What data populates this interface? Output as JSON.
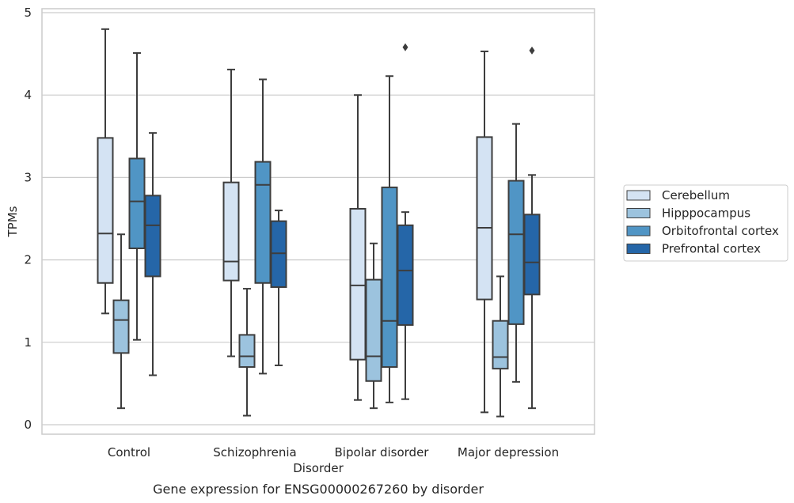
{
  "chart_data": {
    "type": "box",
    "xlabel": "Disorder",
    "ylabel": "TPMs",
    "caption": "Gene expression for ENSG00000267260 by disorder",
    "ylim": [
      -0.12,
      5.05
    ],
    "yticks": [
      0,
      1,
      2,
      3,
      4,
      5
    ],
    "grid": true,
    "legend_position": "right",
    "categories": [
      "Control",
      "Schizophrenia",
      "Bipolar disorder",
      "Major depression"
    ],
    "series": [
      {
        "name": "Cerebellum",
        "color": "#d4e3f3",
        "boxes": [
          {
            "whislo": 1.35,
            "q1": 1.72,
            "med": 2.32,
            "q3": 3.48,
            "whishi": 4.8,
            "fliers": []
          },
          {
            "whislo": 0.83,
            "q1": 1.75,
            "med": 1.98,
            "q3": 2.94,
            "whishi": 4.31,
            "fliers": []
          },
          {
            "whislo": 0.3,
            "q1": 0.79,
            "med": 1.69,
            "q3": 2.62,
            "whishi": 4.0,
            "fliers": []
          },
          {
            "whislo": 0.15,
            "q1": 1.52,
            "med": 2.39,
            "q3": 3.49,
            "whishi": 4.53,
            "fliers": []
          }
        ]
      },
      {
        "name": "Hipppocampus",
        "color": "#9cc3de",
        "boxes": [
          {
            "whislo": 0.2,
            "q1": 0.87,
            "med": 1.27,
            "q3": 1.51,
            "whishi": 2.31,
            "fliers": []
          },
          {
            "whislo": 0.11,
            "q1": 0.7,
            "med": 0.83,
            "q3": 1.09,
            "whishi": 1.65,
            "fliers": []
          },
          {
            "whislo": 0.2,
            "q1": 0.53,
            "med": 0.83,
            "q3": 1.76,
            "whishi": 2.2,
            "fliers": []
          },
          {
            "whislo": 0.1,
            "q1": 0.68,
            "med": 0.82,
            "q3": 1.26,
            "whishi": 1.8,
            "fliers": []
          }
        ]
      },
      {
        "name": "Orbitofrontal cortex",
        "color": "#5095c5",
        "boxes": [
          {
            "whislo": 1.03,
            "q1": 2.14,
            "med": 2.71,
            "q3": 3.23,
            "whishi": 4.51,
            "fliers": []
          },
          {
            "whislo": 0.62,
            "q1": 1.72,
            "med": 2.91,
            "q3": 3.19,
            "whishi": 4.19,
            "fliers": []
          },
          {
            "whislo": 0.27,
            "q1": 0.7,
            "med": 1.26,
            "q3": 2.88,
            "whishi": 4.23,
            "fliers": []
          },
          {
            "whislo": 0.52,
            "q1": 1.22,
            "med": 2.31,
            "q3": 2.96,
            "whishi": 3.65,
            "fliers": []
          }
        ]
      },
      {
        "name": "Prefrontal cortex",
        "color": "#2566a8",
        "boxes": [
          {
            "whislo": 0.6,
            "q1": 1.8,
            "med": 2.42,
            "q3": 2.78,
            "whishi": 3.54,
            "fliers": []
          },
          {
            "whislo": 0.72,
            "q1": 1.67,
            "med": 2.08,
            "q3": 2.47,
            "whishi": 2.6,
            "fliers": []
          },
          {
            "whislo": 0.31,
            "q1": 1.21,
            "med": 1.87,
            "q3": 2.42,
            "whishi": 2.58,
            "fliers": [
              4.58
            ]
          },
          {
            "whislo": 0.2,
            "q1": 1.58,
            "med": 1.97,
            "q3": 2.55,
            "whishi": 3.03,
            "fliers": [
              4.54
            ]
          }
        ]
      }
    ]
  }
}
